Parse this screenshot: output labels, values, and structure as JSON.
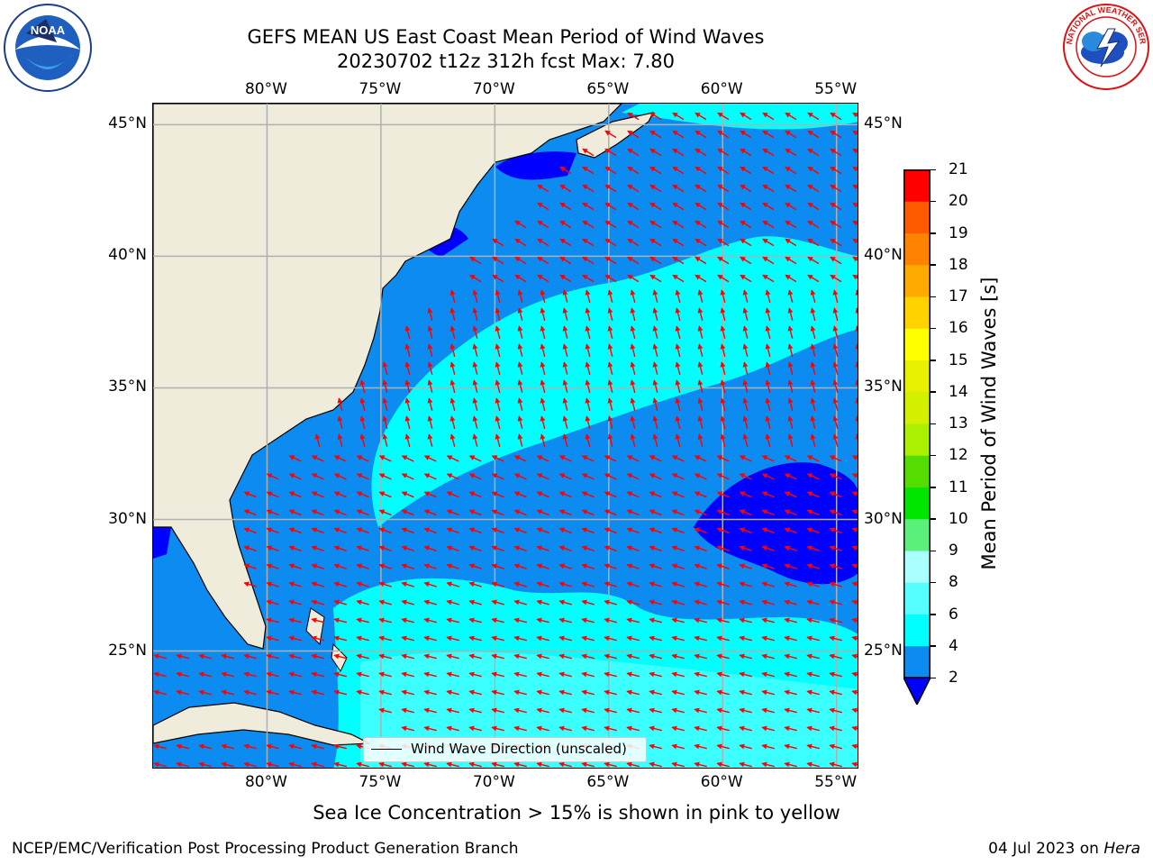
{
  "header": {
    "title_line1": "GEFS MEAN US East Coast Mean Period of Wind Waves",
    "title_line2": "20230702 t12z 312h fcst   Max: 7.80"
  },
  "logos": {
    "left": {
      "icon": "noaa-logo-icon",
      "text": "NOAA"
    },
    "right": {
      "icon": "nws-logo-icon",
      "text": "NATIONAL WEATHER SERVICE"
    }
  },
  "map": {
    "projection": "cylindrical",
    "lon_range": [
      -85,
      -54
    ],
    "lat_range": [
      20.5,
      45.8
    ],
    "lon_ticks": [
      {
        "lon": -80,
        "label": "80°W"
      },
      {
        "lon": -75,
        "label": "75°W"
      },
      {
        "lon": -70,
        "label": "70°W"
      },
      {
        "lon": -65,
        "label": "65°W"
      },
      {
        "lon": -60,
        "label": "60°W"
      },
      {
        "lon": -55,
        "label": "55°W"
      }
    ],
    "lat_ticks": [
      {
        "lat": 45,
        "label": "45°N"
      },
      {
        "lat": 40,
        "label": "40°N"
      },
      {
        "lat": 35,
        "label": "35°N"
      },
      {
        "lat": 30,
        "label": "30°N"
      },
      {
        "lat": 25,
        "label": "25°N"
      }
    ],
    "grid": true,
    "colors": {
      "land": "#efecdb",
      "band_2_4": "#0c8cf0",
      "band_4_6": "#00ffff",
      "band_6_8": "#55ffff",
      "below_2": "#0000ff",
      "arrow": "#ff0000",
      "grid": "#b0b0b0"
    },
    "legend": {
      "label": "Wind Wave Direction (unscaled)",
      "placement": "lower-center"
    }
  },
  "colorbar": {
    "label": "Mean Period of Wind Waves [s]",
    "ticks": [
      "2",
      "4",
      "6",
      "8",
      "9",
      "10",
      "11",
      "12",
      "13",
      "14",
      "15",
      "16",
      "17",
      "18",
      "19",
      "20",
      "21"
    ],
    "colors": [
      "#0c8cf0",
      "#00ffff",
      "#55ffff",
      "#aaffff",
      "#5af07a",
      "#00e600",
      "#55dc00",
      "#aaf000",
      "#d2f000",
      "#e6f000",
      "#ffff00",
      "#ffd200",
      "#ffaa00",
      "#ff8200",
      "#ff5a00",
      "#ff2d00",
      "#ff0000"
    ],
    "under_color": "#0000ff"
  },
  "caption": "Sea Ice Concentration > 15% is shown in pink to yellow",
  "footer": {
    "left": "NCEP/EMC/Verification Post Processing Product Generation Branch",
    "right_prefix": "04 Jul 2023 on ",
    "right_italic": "Hera"
  }
}
